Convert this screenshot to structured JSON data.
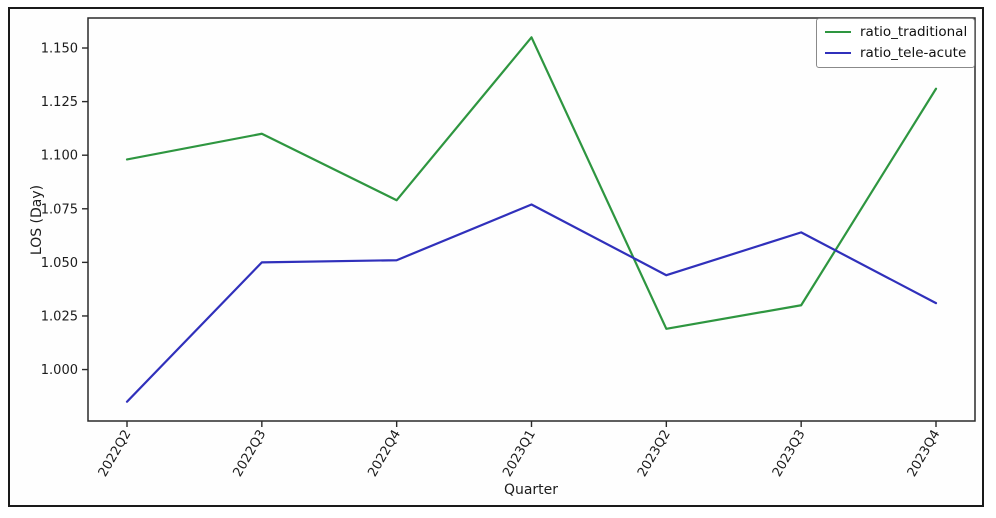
{
  "chart_data": {
    "type": "line",
    "xlabel": "Quarter",
    "ylabel": "LOS (Day)",
    "categories": [
      "2022Q2",
      "2022Q3",
      "2022Q4",
      "2023Q1",
      "2023Q2",
      "2023Q3",
      "2023Q4"
    ],
    "series": [
      {
        "name": "ratio_traditional",
        "color": "#2e9640",
        "values": [
          1.098,
          1.11,
          1.079,
          1.155,
          1.019,
          1.03,
          1.131
        ]
      },
      {
        "name": "ratio_tele-acute",
        "color": "#3030bb",
        "values": [
          0.985,
          1.05,
          1.051,
          1.077,
          1.044,
          1.064,
          1.031
        ]
      }
    ],
    "yticks": [
      1.0,
      1.025,
      1.05,
      1.075,
      1.1,
      1.125,
      1.15
    ],
    "ytick_labels": [
      "1.000",
      "1.025",
      "1.050",
      "1.075",
      "1.100",
      "1.125",
      "1.150"
    ],
    "ylim": [
      0.976,
      1.164
    ],
    "xtick_rotation_deg": 60,
    "grid": false,
    "legend_position": "upper right",
    "axis_color": "#2a2a2a",
    "tick_text_color": "#1c1c1c"
  }
}
